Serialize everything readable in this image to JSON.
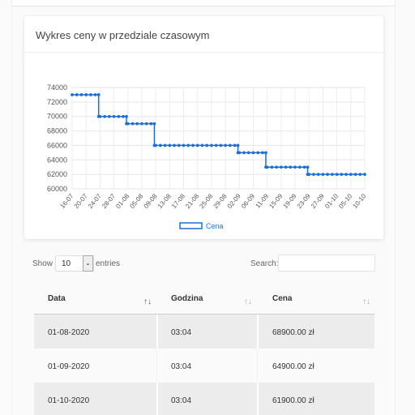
{
  "card": {
    "title": "Wykres ceny w przedziale czasowym"
  },
  "chart_data": {
    "type": "line",
    "x": [
      "16-07",
      "20-07",
      "24-07",
      "28-07",
      "01-08",
      "05-08",
      "09-08",
      "13-08",
      "17-08",
      "21-08",
      "25-08",
      "29-08",
      "02-09",
      "06-09",
      "11-09",
      "15-09",
      "19-09",
      "23-09",
      "27-09",
      "01-10",
      "05-10",
      "10-10"
    ],
    "series": [
      {
        "name": "Cena",
        "color": "#1f6fd1",
        "values": [
          73000,
          73000,
          70000,
          70000,
          69000,
          69000,
          66000,
          66000,
          66000,
          66000,
          66000,
          66000,
          65000,
          65000,
          63000,
          63000,
          63000,
          62000,
          62000,
          62000,
          62000,
          62000
        ]
      }
    ],
    "yticks": [
      "74000",
      "72000",
      "70000",
      "68000",
      "66000",
      "64000",
      "62000",
      "60000"
    ],
    "ylim": [
      60000,
      74000
    ],
    "legend": "bottom",
    "grid": true
  },
  "controls": {
    "show_label": "Show",
    "entries_value": "10",
    "entries_label": "entries",
    "search_label": "Search:",
    "search_value": ""
  },
  "table": {
    "headers": [
      "Data",
      "Godzina",
      "Cena"
    ],
    "rows": [
      [
        "01-08-2020",
        "03:04",
        "68900.00 zł"
      ],
      [
        "01-09-2020",
        "03:04",
        "64900.00 zł"
      ],
      [
        "01-10-2020",
        "03:04",
        "61900.00 zł"
      ]
    ]
  }
}
